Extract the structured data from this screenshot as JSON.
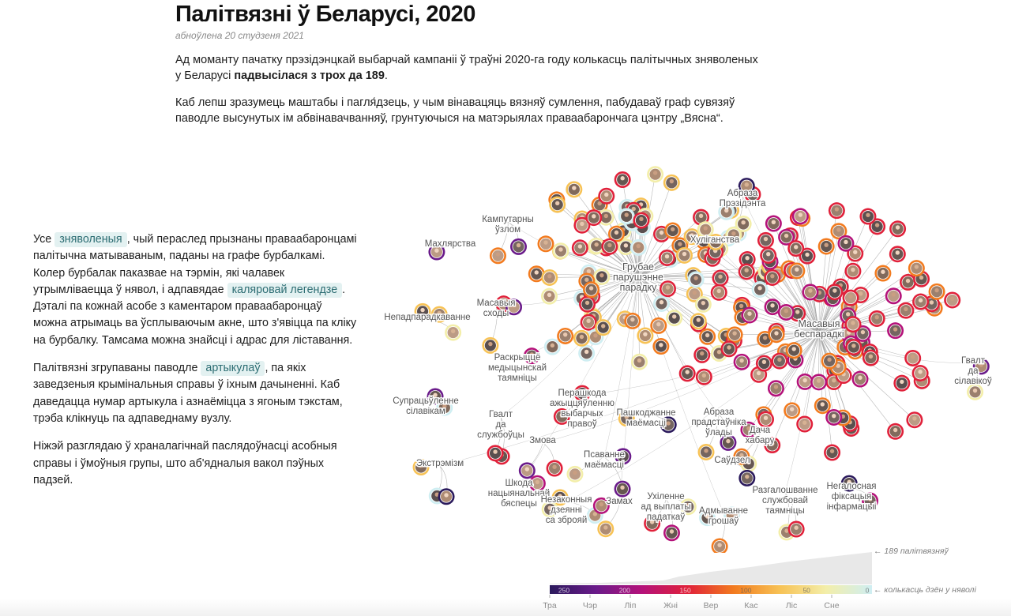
{
  "header": {
    "title": "Палітвязні ў Беларусі, 2020",
    "updated": "абноўлена 20 студзеня 2021",
    "lead_1_text": "Ад моманту пачатку прэзідэнцкай выбарчай кампаніі ў траўні 2020-га году колькасць палітычных зняволеных у Беларусі ",
    "lead_1_bold": "падвысілася з трох да 189",
    "lead_1_end": ".",
    "lead_2": "Каб лепш зразумець маштабы і пагля́дзець, у чым вінавацяць вязняў сумлення, пабудаваў граф сувязяў паводле высунутых ім абвінавачванняў, грунтуючыся на матэрыялах праваабарончага цэнтру „Вясна“."
  },
  "side": {
    "p1_a": "Усе ",
    "p1_chip": "зняволеныя",
    "p1_b": ", чый пераслед прызнаны праваабаронцамі палітычна матываваным, паданы на графе бурбалкамі. Колер бурбалак паказвае на тэрмін, які чалавек утрымліваецца ў нявол, і адпавядае ",
    "p1_chip2": "каляровай легендзе",
    "p1_c": ". Дэталі па кожнай асобе з каментаром праваабаронцаў можна атрымаць ва ўсплываючым акне, што з'явіцца па кліку на бурбалку. Тамсама можна знайсці і адрас для ліставання.",
    "p2_a": "Палітвязні згрупаваны паводле ",
    "p2_chip": "артыкулаў",
    "p2_b": ", па якіх заведзеныя крымінальныя справы ў іхным дачыненні. Каб даведацца нумар артыкула і азнаёміцца з ягоным тэкстам, трэба клікнуць па адпаведнаму вузлу.",
    "p3": "Ніжэй разглядаю ў храналагічнай паслядоўнасці асобныя справы і ўмоўныя групы, што аб'ядналыя вакол пэўных падзей."
  },
  "graph": {
    "hubs": [
      {
        "label": "Грубае парушэнне парадку",
        "lines": [
          "Грубае",
          "парушэнне",
          "парадку"
        ]
      },
      {
        "label": "Масавыя беспарадкі",
        "lines": [
          "Масавыя",
          "беспарадкі"
        ]
      }
    ],
    "articles": [
      {
        "lines": [
          "Кампутарны",
          "ўзлом"
        ]
      },
      {
        "lines": [
          "Абраза",
          "Прэзідэнта"
        ]
      },
      {
        "lines": [
          "Махлярства"
        ]
      },
      {
        "lines": [
          "Хуліганства"
        ]
      },
      {
        "lines": [
          "Масавыя",
          "сходы"
        ]
      },
      {
        "lines": [
          "Непадпарадкаванне"
        ]
      },
      {
        "lines": [
          "Раскрыццё",
          "медыцынскай",
          "таямніцы"
        ]
      },
      {
        "lines": [
          "Гвалт",
          "да",
          "сілавікоў"
        ]
      },
      {
        "lines": [
          "Супрацьўленне",
          "сілавікам"
        ]
      },
      {
        "lines": [
          "Перашкода",
          "ажыццяўленню",
          "выбарчых",
          "правоў"
        ]
      },
      {
        "lines": [
          "Гвалт",
          "да",
          "службоўцы"
        ]
      },
      {
        "lines": [
          "Пашкоджанне",
          "маёмасці"
        ]
      },
      {
        "lines": [
          "Абраза",
          "прадстаўніка",
          "ўлады"
        ]
      },
      {
        "lines": [
          "Змова"
        ]
      },
      {
        "lines": [
          "Дача",
          "хабару"
        ]
      },
      {
        "lines": [
          "Экстрэмізм"
        ]
      },
      {
        "lines": [
          "Псаванне",
          "маёмасці"
        ]
      },
      {
        "lines": [
          "Саўдзел"
        ]
      },
      {
        "lines": [
          "Шкода",
          "нацыянальнай",
          "бяспецы"
        ]
      },
      {
        "lines": [
          "Разгалошванне",
          "службовай",
          "таямніцы"
        ]
      },
      {
        "lines": [
          "Негалосная",
          "фіксацыя",
          "інфармацыі"
        ]
      },
      {
        "lines": [
          "Незаконныя",
          "дзеянні",
          "са зброяй"
        ]
      },
      {
        "lines": [
          "Замах"
        ]
      },
      {
        "lines": [
          "Ухіленне",
          "ад выплаты",
          "падаткаў"
        ]
      },
      {
        "lines": [
          "Адмыванне",
          "грошаў"
        ]
      }
    ]
  },
  "timeline": {
    "total_note": "← 189 палітвязняў",
    "days_note": "← колькасць дзён у няволі",
    "legend_ticks": [
      "250",
      "200",
      "150",
      "100",
      "50",
      "0"
    ],
    "months": [
      "Тра",
      "Чэр",
      "Ліп",
      "Жні",
      "Вер",
      "Кас",
      "Ліс",
      "Сне"
    ]
  },
  "colors": {
    "legend_stops": [
      "#2b1a5c",
      "#6a1b8a",
      "#b4127a",
      "#e0213a",
      "#f27b1f",
      "#f7c255",
      "#f3eea9",
      "#cfeef2"
    ],
    "chip_bg": "#e3f1f1",
    "chip_text": "#2d6d73",
    "link": "#9a9a9a",
    "area": "#e8e8e8"
  }
}
